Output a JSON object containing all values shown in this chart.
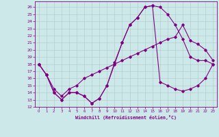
{
  "xlabel": "Windchill (Refroidissement éolien,°C)",
  "background_color": "#cce8e8",
  "line_color": "#800080",
  "grid_color": "#b0c8c8",
  "xlim": [
    -0.5,
    23.5
  ],
  "ylim": [
    12,
    26.8
  ],
  "xticks": [
    0,
    1,
    2,
    3,
    4,
    5,
    6,
    7,
    8,
    9,
    10,
    11,
    12,
    13,
    14,
    15,
    16,
    17,
    18,
    19,
    20,
    21,
    22,
    23
  ],
  "yticks": [
    12,
    13,
    14,
    15,
    16,
    17,
    18,
    19,
    20,
    21,
    22,
    23,
    24,
    25,
    26
  ],
  "series": [
    [
      18.0,
      16.5,
      14.0,
      13.0,
      14.0,
      14.0,
      13.5,
      12.5,
      13.2,
      15.0,
      18.0,
      21.0,
      23.5,
      24.5,
      26.0,
      26.2,
      26.0,
      25.0,
      23.5,
      21.5,
      19.0,
      18.5,
      18.5,
      18.0
    ],
    [
      18.0,
      16.5,
      14.5,
      13.5,
      14.5,
      15.0,
      16.0,
      16.5,
      17.0,
      17.5,
      18.0,
      18.5,
      19.0,
      19.5,
      20.0,
      20.5,
      21.0,
      21.5,
      21.8,
      23.5,
      21.3,
      20.8,
      20.0,
      18.5
    ],
    [
      18.0,
      16.5,
      14.0,
      13.0,
      14.0,
      14.0,
      13.5,
      12.5,
      13.2,
      15.0,
      18.2,
      21.0,
      23.5,
      24.5,
      26.0,
      26.2,
      15.5,
      15.0,
      14.5,
      14.2,
      14.5,
      15.0,
      16.0,
      18.0
    ]
  ]
}
